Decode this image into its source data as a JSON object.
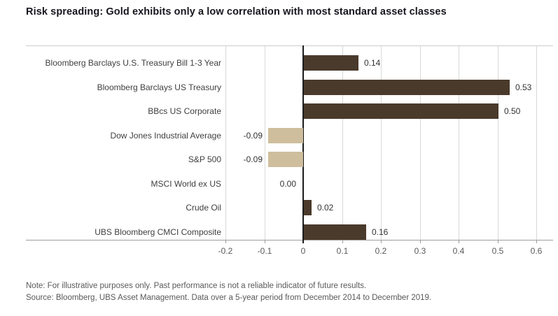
{
  "title": "Risk spreading: Gold exhibits only a low correlation with most standard asset classes",
  "chart_data": {
    "type": "bar",
    "orientation": "horizontal",
    "title": "Risk spreading: Gold exhibits only a low correlation with most standard asset classes",
    "categories": [
      "Bloomberg Barclays U.S. Treasury Bill 1-3 Year",
      "Bloomberg Barclays US Treasury",
      "BBcs US Corporate",
      "Dow Jones Industrial Average",
      "S&P 500",
      "MSCI World ex US",
      "Crude Oil",
      "UBS Bloomberg CMCI Composite"
    ],
    "values": [
      0.14,
      0.53,
      0.5,
      -0.09,
      -0.09,
      0.0,
      0.02,
      0.16
    ],
    "value_labels": [
      "0.14",
      "0.53",
      "0.50",
      "-0.09",
      "-0.09",
      "0.00",
      "0.02",
      "0.16"
    ],
    "xlim": [
      -0.2,
      0.6
    ],
    "x_tick_values": [
      -0.2,
      -0.1,
      0,
      0.1,
      0.2,
      0.3,
      0.4,
      0.5,
      0.6
    ],
    "x_tick_labels": [
      "-0.2",
      "-0.1",
      "0",
      "0.1",
      "0.2",
      "0.3",
      "0.4",
      "0.5",
      "0.6"
    ],
    "grid": true,
    "legend": "none",
    "colors": {
      "positive_bar": "#4a3a2b",
      "negative_bar": "#cfbe9d",
      "gridline": "#d9d9d9",
      "zero_axis": "#1c1c1c"
    }
  },
  "footnotes": {
    "note": "Note: For illustrative purposes only. Past performance is not a reliable indicator of future results.",
    "source": "Source: Bloomberg, UBS Asset Management. Data over a 5-year period from December 2014 to December 2019."
  }
}
